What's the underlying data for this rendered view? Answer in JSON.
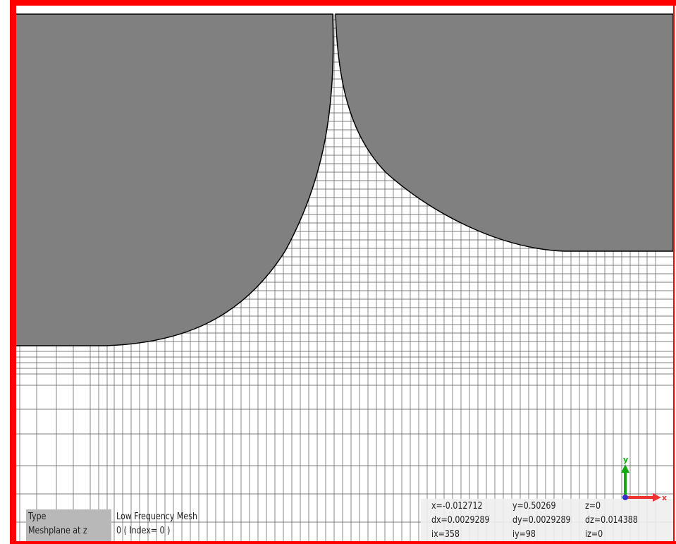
{
  "panel": {
    "type_label": "Type",
    "type_value": "Low Frequency Mesh",
    "plane_label": "Meshplane at z",
    "plane_value": "0 ( Index= 0 )"
  },
  "coords": {
    "rows": [
      [
        "x=-0.012712",
        "y=0.50269",
        "z=0"
      ],
      [
        "dx=0.0029289",
        "dy=0.0029289",
        "dz=0.014388"
      ],
      [
        "ix=358",
        "iy=98",
        "iz=0"
      ]
    ]
  },
  "axes": {
    "y": "y",
    "x": "x"
  }
}
